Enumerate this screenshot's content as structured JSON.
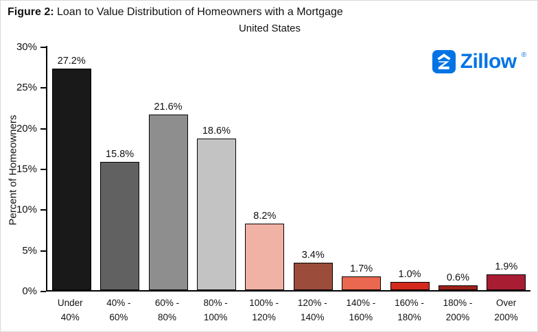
{
  "branding": {
    "name": "Zillow",
    "registered": "®",
    "color": "#0074e4"
  },
  "chart_data": {
    "type": "bar",
    "title_prefix": "Figure 2:",
    "title_rest": " Loan to Value Distribution of Homeowners with a Mortgage",
    "subtitle": "United States",
    "ylabel": "Percent of Homeowners",
    "ylim": [
      0,
      30
    ],
    "grid": false,
    "legend": "none",
    "yticks": [
      0,
      5,
      10,
      15,
      20,
      25,
      30
    ],
    "ytick_labels": [
      "0%",
      "5%",
      "10%",
      "15%",
      "20%",
      "25%",
      "30%"
    ],
    "categories": [
      "Under\n40%",
      "40% -\n60%",
      "60% -\n80%",
      "80% -\n100%",
      "100% -\n120%",
      "120% -\n140%",
      "140% -\n160%",
      "160% -\n180%",
      "180% -\n200%",
      "Over\n200%"
    ],
    "values": [
      27.2,
      15.8,
      21.6,
      18.6,
      8.2,
      3.4,
      1.7,
      1.0,
      0.6,
      1.9
    ],
    "value_labels": [
      "27.2%",
      "15.8%",
      "21.6%",
      "18.6%",
      "8.2%",
      "3.4%",
      "1.7%",
      "1.0%",
      "0.6%",
      "1.9%"
    ],
    "bar_colors": [
      "#191919",
      "#616161",
      "#8e8e8e",
      "#c3c3c3",
      "#f1b2a6",
      "#9b4c3b",
      "#ea6850",
      "#d42a1d",
      "#9d221a",
      "#a91d33"
    ]
  }
}
